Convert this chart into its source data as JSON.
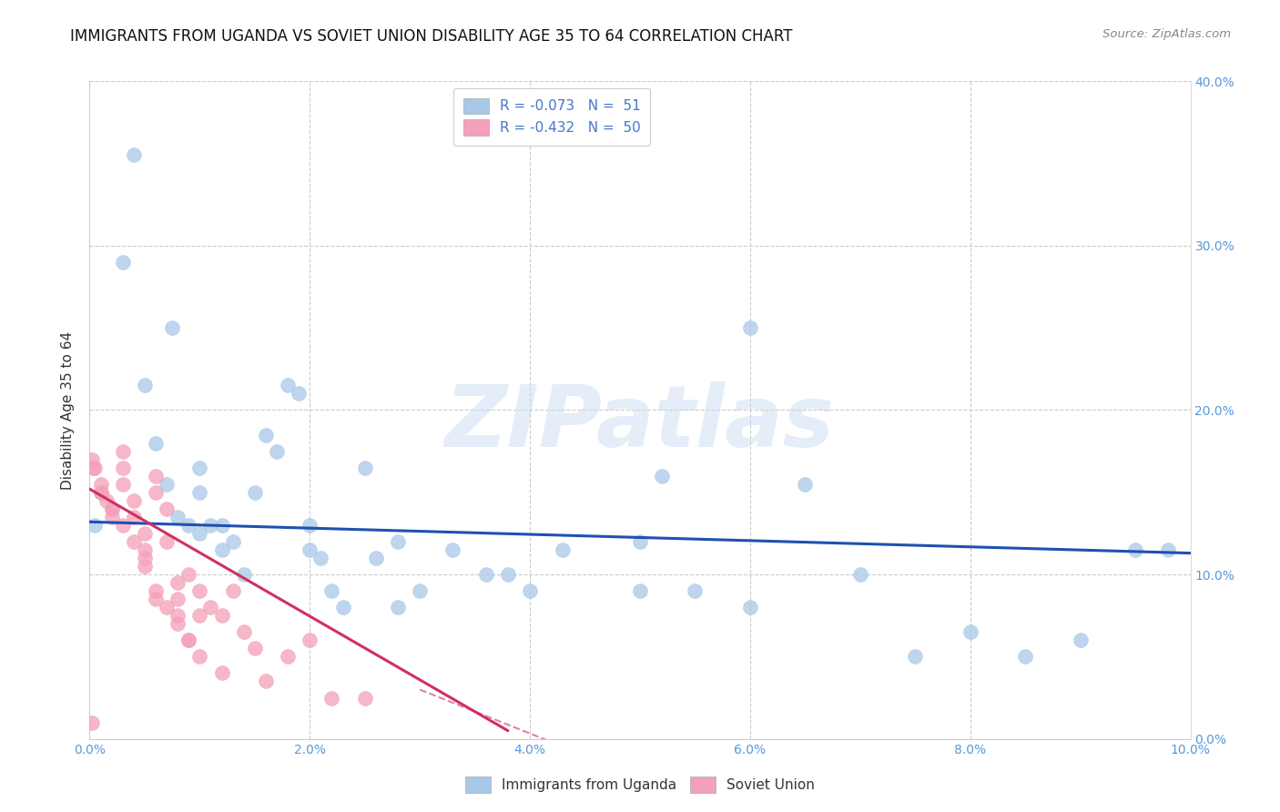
{
  "title": "IMMIGRANTS FROM UGANDA VS SOVIET UNION DISABILITY AGE 35 TO 64 CORRELATION CHART",
  "source": "Source: ZipAtlas.com",
  "ylabel": "Disability Age 35 to 64",
  "xlim": [
    0.0,
    0.1
  ],
  "ylim": [
    0.0,
    0.4
  ],
  "xtick_vals": [
    0.0,
    0.02,
    0.04,
    0.06,
    0.08,
    0.1
  ],
  "xtick_labels": [
    "0.0%",
    "2.0%",
    "4.0%",
    "6.0%",
    "8.0%",
    "10.0%"
  ],
  "ytick_vals": [
    0.0,
    0.1,
    0.2,
    0.3,
    0.4
  ],
  "ytick_labels_right": [
    "0.0%",
    "10.0%",
    "20.0%",
    "30.0%",
    "40.0%"
  ],
  "legend_line1": "R = -0.073   N =  51",
  "legend_line2": "R = -0.432   N =  50",
  "uganda_color": "#a8c8e8",
  "soviet_color": "#f4a0b8",
  "trend_blue": "#2050b0",
  "trend_pink": "#d03060",
  "watermark": "ZIPatlas",
  "uganda_x": [
    0.0005,
    0.003,
    0.004,
    0.005,
    0.006,
    0.007,
    0.0075,
    0.008,
    0.009,
    0.01,
    0.01,
    0.011,
    0.012,
    0.013,
    0.014,
    0.015,
    0.016,
    0.017,
    0.018,
    0.019,
    0.02,
    0.021,
    0.022,
    0.023,
    0.025,
    0.026,
    0.028,
    0.03,
    0.033,
    0.036,
    0.038,
    0.04,
    0.043,
    0.05,
    0.052,
    0.055,
    0.06,
    0.065,
    0.07,
    0.075,
    0.08,
    0.085,
    0.09,
    0.095,
    0.098,
    0.01,
    0.012,
    0.02,
    0.028,
    0.05,
    0.06
  ],
  "uganda_y": [
    0.13,
    0.29,
    0.355,
    0.215,
    0.18,
    0.155,
    0.25,
    0.135,
    0.13,
    0.165,
    0.15,
    0.13,
    0.115,
    0.12,
    0.1,
    0.15,
    0.185,
    0.175,
    0.215,
    0.21,
    0.13,
    0.11,
    0.09,
    0.08,
    0.165,
    0.11,
    0.12,
    0.09,
    0.115,
    0.1,
    0.1,
    0.09,
    0.115,
    0.12,
    0.16,
    0.09,
    0.08,
    0.155,
    0.1,
    0.05,
    0.065,
    0.05,
    0.06,
    0.115,
    0.115,
    0.125,
    0.13,
    0.115,
    0.08,
    0.09,
    0.25
  ],
  "soviet_x": [
    0.0002,
    0.0003,
    0.0005,
    0.001,
    0.001,
    0.0015,
    0.002,
    0.002,
    0.003,
    0.003,
    0.003,
    0.004,
    0.004,
    0.005,
    0.005,
    0.005,
    0.006,
    0.006,
    0.006,
    0.007,
    0.007,
    0.008,
    0.008,
    0.008,
    0.009,
    0.009,
    0.01,
    0.01,
    0.011,
    0.012,
    0.013,
    0.014,
    0.015,
    0.016,
    0.018,
    0.02,
    0.022,
    0.025,
    0.0002,
    0.001,
    0.002,
    0.003,
    0.004,
    0.005,
    0.006,
    0.007,
    0.008,
    0.009,
    0.01,
    0.012
  ],
  "soviet_y": [
    0.01,
    0.165,
    0.165,
    0.155,
    0.15,
    0.145,
    0.14,
    0.135,
    0.175,
    0.165,
    0.155,
    0.145,
    0.135,
    0.125,
    0.115,
    0.105,
    0.16,
    0.15,
    0.085,
    0.14,
    0.12,
    0.095,
    0.085,
    0.075,
    0.1,
    0.06,
    0.09,
    0.075,
    0.08,
    0.075,
    0.09,
    0.065,
    0.055,
    0.035,
    0.05,
    0.06,
    0.025,
    0.025,
    0.17,
    0.15,
    0.14,
    0.13,
    0.12,
    0.11,
    0.09,
    0.08,
    0.07,
    0.06,
    0.05,
    0.04
  ],
  "blue_trend_x": [
    0.0,
    0.1
  ],
  "blue_trend_y": [
    0.132,
    0.113
  ],
  "pink_trend_x": [
    0.0,
    0.038
  ],
  "pink_trend_y": [
    0.152,
    0.005
  ]
}
